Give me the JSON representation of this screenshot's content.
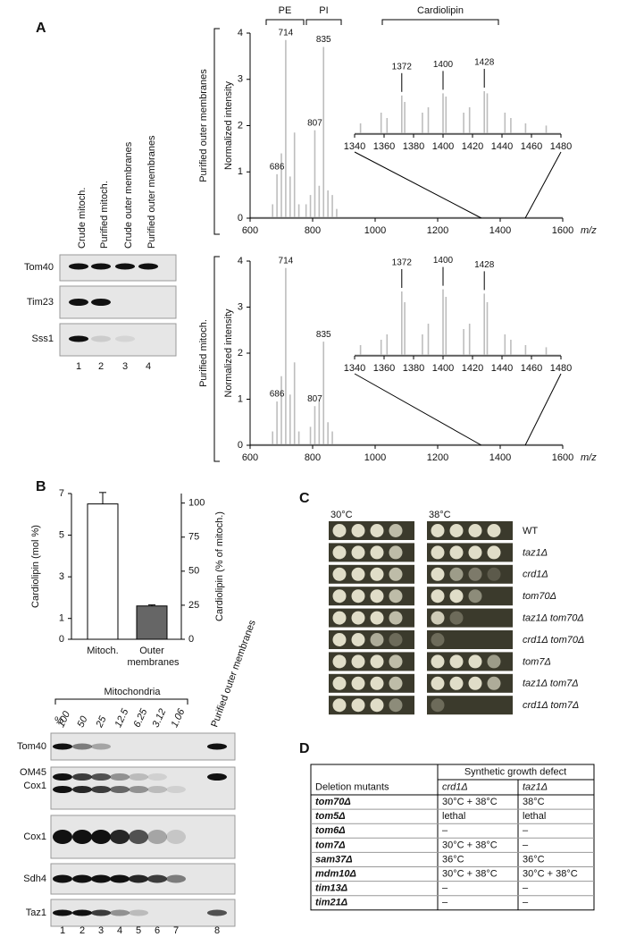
{
  "panel_labels": [
    "A",
    "B",
    "C",
    "D"
  ],
  "panel_a": {
    "blot": {
      "lanes": [
        "Crude mitoch.",
        "Purified mitoch.",
        "Crude outer membranes",
        "Purified outer membranes"
      ],
      "lane_numbers": [
        "1",
        "2",
        "3",
        "4"
      ],
      "rows": [
        "Tom40",
        "Tim23",
        "Sss1"
      ]
    }
  },
  "panel_b": {
    "blot": {
      "group": "Mitochondria",
      "percent_label": "%",
      "dilutions": [
        "100",
        "50",
        "25",
        "12.5",
        "6.25",
        "3.12",
        "1.06"
      ],
      "outer_lane": "Purified outer membranes",
      "lane_numbers": [
        "1",
        "2",
        "3",
        "4",
        "5",
        "6",
        "7",
        "8"
      ],
      "rows": [
        "Tom40",
        "OM45",
        "Cox1",
        "Cox1",
        "Sdh4",
        "Taz1"
      ]
    }
  },
  "panel_c": {
    "temperatures": [
      "30°C",
      "38°C"
    ],
    "strains": [
      "WT",
      "taz1Δ",
      "crd1Δ",
      "tom70Δ",
      "taz1Δ tom70Δ",
      "crd1Δ tom70Δ",
      "tom7Δ",
      "taz1Δ tom7Δ",
      "crd1Δ tom7Δ"
    ]
  },
  "panel_d": {
    "table": {
      "group_header": "Synthetic growth defect",
      "row_header": "Deletion mutants",
      "columns": [
        "crd1Δ",
        "taz1Δ"
      ],
      "rows": [
        [
          "tom70Δ",
          "30°C + 38°C",
          "38°C"
        ],
        [
          "tom5Δ",
          "lethal",
          "lethal"
        ],
        [
          "tom6Δ",
          "–",
          "–"
        ],
        [
          "tom7Δ",
          "30°C + 38°C",
          "–"
        ],
        [
          "sam37Δ",
          "36°C",
          "36°C"
        ],
        [
          "mdm10Δ",
          "30°C + 38°C",
          "30°C + 38°C"
        ],
        [
          "tim13Δ",
          "–",
          "–"
        ],
        [
          "tim21Δ",
          "–",
          "–"
        ]
      ]
    }
  },
  "chart_data": [
    {
      "type": "spectrum",
      "y_label": "Normalized intensity",
      "x_label": "m/z",
      "side_label": "Purified outer membranes",
      "group_labels": [
        "PE",
        "PI",
        "Cardiolipin"
      ],
      "color": "#bdbdbd",
      "xlim": [
        600,
        1600
      ],
      "xticks": [
        600,
        800,
        1000,
        1200,
        1400,
        1600
      ],
      "ylim": [
        0,
        4
      ],
      "yticks": [
        0,
        1,
        2,
        3,
        4
      ],
      "x": [
        672,
        686,
        700,
        714,
        728,
        742,
        756,
        779,
        793,
        807,
        821,
        835,
        849,
        863,
        877
      ],
      "values": [
        0.3,
        0.95,
        1.4,
        3.85,
        0.9,
        1.85,
        0.3,
        0.3,
        0.5,
        1.9,
        0.7,
        3.7,
        0.6,
        0.5,
        0.2
      ],
      "labeled_peaks": [
        686,
        714,
        807,
        835
      ]
    },
    {
      "type": "spectrum",
      "color": "#bdbdbd",
      "xlim": [
        1340,
        1480
      ],
      "xticks": [
        1340,
        1360,
        1380,
        1400,
        1420,
        1440,
        1460,
        1480
      ],
      "ylim": [
        0,
        1
      ],
      "x": [
        1344,
        1358,
        1362,
        1372,
        1374,
        1386,
        1390,
        1400,
        1402,
        1414,
        1418,
        1428,
        1430,
        1442,
        1446,
        1456,
        1470
      ],
      "values": [
        0.1,
        0.2,
        0.15,
        0.36,
        0.3,
        0.2,
        0.25,
        0.38,
        0.35,
        0.2,
        0.25,
        0.4,
        0.38,
        0.2,
        0.15,
        0.1,
        0.08
      ],
      "labeled_peaks": [
        1372,
        1400,
        1428
      ]
    },
    {
      "type": "spectrum",
      "y_label": "Normalized intensity",
      "x_label": "m/z",
      "side_label": "Purified mitoch.",
      "color": "#bdbdbd",
      "xlim": [
        600,
        1600
      ],
      "xticks": [
        600,
        800,
        1000,
        1200,
        1400,
        1600
      ],
      "ylim": [
        0,
        4
      ],
      "yticks": [
        0,
        1,
        2,
        3,
        4
      ],
      "x": [
        672,
        686,
        700,
        714,
        728,
        742,
        756,
        793,
        807,
        821,
        835,
        849,
        863
      ],
      "values": [
        0.3,
        0.95,
        1.5,
        3.85,
        1.1,
        1.8,
        0.3,
        0.4,
        0.85,
        1.0,
        2.25,
        0.5,
        0.3
      ],
      "labeled_peaks": [
        686,
        714,
        807,
        835
      ]
    },
    {
      "type": "spectrum",
      "color": "#bdbdbd",
      "xlim": [
        1340,
        1480
      ],
      "xticks": [
        1340,
        1360,
        1380,
        1400,
        1420,
        1440,
        1460,
        1480
      ],
      "ylim": [
        0,
        1
      ],
      "x": [
        1344,
        1358,
        1362,
        1372,
        1374,
        1386,
        1390,
        1400,
        1402,
        1414,
        1418,
        1428,
        1430,
        1442,
        1446,
        1456,
        1470
      ],
      "values": [
        0.1,
        0.15,
        0.2,
        0.6,
        0.5,
        0.2,
        0.3,
        0.62,
        0.55,
        0.25,
        0.3,
        0.58,
        0.5,
        0.2,
        0.15,
        0.1,
        0.08
      ],
      "labeled_peaks": [
        1372,
        1400,
        1428
      ]
    },
    {
      "type": "bar",
      "categories": [
        "Mitoch.",
        "Outer membranes"
      ],
      "values": [
        6.5,
        1.6
      ],
      "errors": [
        0.55,
        0.05
      ],
      "colors": [
        "#ffffff",
        "#666666"
      ],
      "ylim": [
        0,
        7
      ],
      "yticks": [
        0,
        1,
        3,
        5,
        7
      ],
      "y_label": "Cardiolipin (mol %)",
      "y2lim": [
        0,
        107
      ],
      "y2ticks": [
        0,
        25,
        50,
        75,
        100
      ],
      "y2_label": "Cardiolipin (% of mitoch.)"
    }
  ]
}
